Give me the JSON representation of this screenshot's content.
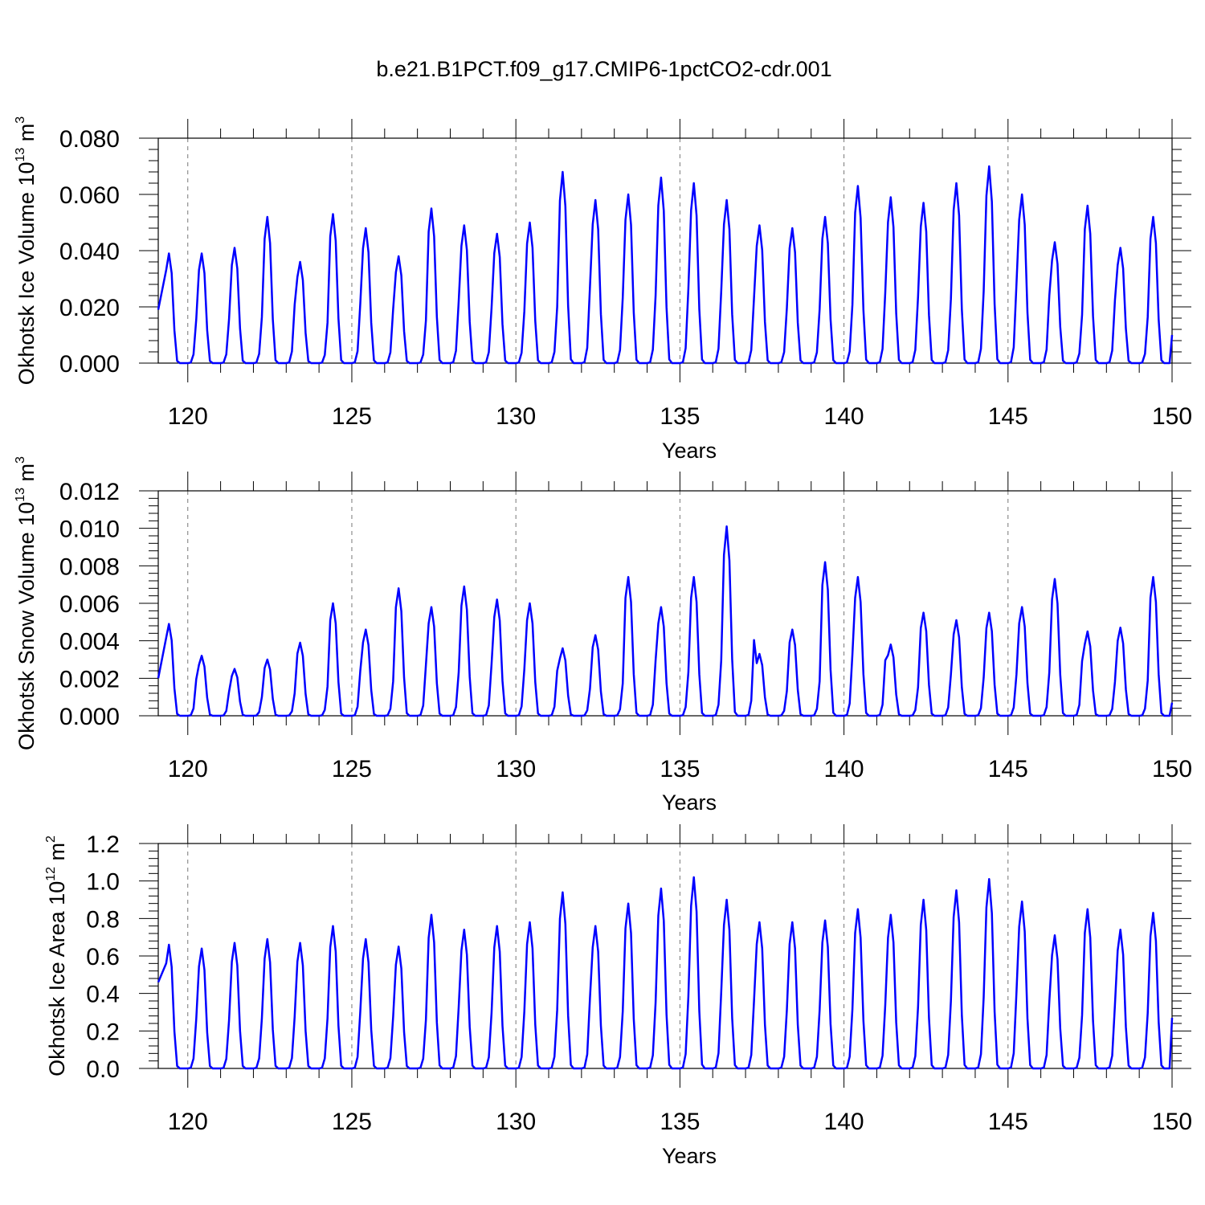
{
  "title": "b.e21.B1PCT.f09_g17.CMIP6-1pctCO2-cdr.001",
  "chart_data": [
    {
      "type": "line",
      "ylabel_main": "Okhotsk Ice Volume 10",
      "ylabel_exp": "13",
      "ylabel_unit": "m",
      "ylabel_unit_exp": "3",
      "xlabel": "Years",
      "xlim": [
        119.1,
        150.0
      ],
      "ylim": [
        0.0,
        0.08
      ],
      "xticks": [
        120,
        125,
        130,
        135,
        140,
        145,
        150
      ],
      "xtick_labels": [
        "120",
        "125",
        "130",
        "135",
        "140",
        "145",
        "150"
      ],
      "yticks": [
        0.0,
        0.02,
        0.04,
        0.06,
        0.08
      ],
      "ytick_labels": [
        "0.000",
        "0.020",
        "0.040",
        "0.060",
        "0.080"
      ],
      "grid": "x dashed",
      "color": "#0000ff",
      "start": 0.019,
      "end": 0.01,
      "peaks": [
        0.039,
        0.039,
        0.041,
        0.052,
        0.036,
        0.053,
        0.048,
        0.038,
        0.055,
        0.049,
        0.046,
        0.05,
        0.068,
        0.058,
        0.06,
        0.066,
        0.064,
        0.058,
        0.049,
        0.048,
        0.052,
        0.063,
        0.059,
        0.057,
        0.064,
        0.07,
        0.06,
        0.043,
        0.056,
        0.041,
        0.052
      ]
    },
    {
      "type": "line",
      "ylabel_main": "Okhotsk Snow Volume 10",
      "ylabel_exp": "13",
      "ylabel_unit": "m",
      "ylabel_unit_exp": "3",
      "xlabel": "Years",
      "xlim": [
        119.1,
        150.0
      ],
      "ylim": [
        0.0,
        0.012
      ],
      "xticks": [
        120,
        125,
        130,
        135,
        140,
        145,
        150
      ],
      "xtick_labels": [
        "120",
        "125",
        "130",
        "135",
        "140",
        "145",
        "150"
      ],
      "yticks": [
        0.0,
        0.002,
        0.004,
        0.006,
        0.008,
        0.01,
        0.012
      ],
      "ytick_labels": [
        "0.000",
        "0.002",
        "0.004",
        "0.006",
        "0.008",
        "0.010",
        "0.012"
      ],
      "grid": "x dashed",
      "color": "#0000ff",
      "start": 0.002,
      "end": 0.0007,
      "peaks": [
        0.0049,
        0.0032,
        0.0025,
        0.003,
        0.0039,
        0.006,
        0.0046,
        0.0068,
        0.0058,
        0.0069,
        0.0062,
        0.006,
        0.0036,
        0.0043,
        0.0074,
        0.0058,
        0.0074,
        0.0101,
        0.0033,
        0.0046,
        0.0082,
        0.0074,
        0.0038,
        0.0055,
        0.0051,
        0.0055,
        0.0058,
        0.0073,
        0.0045,
        0.0047,
        0.0074
      ]
    },
    {
      "type": "line",
      "ylabel_main": "Okhotsk Ice Area 10",
      "ylabel_exp": "12",
      "ylabel_unit": "m",
      "ylabel_unit_exp": "2",
      "xlabel": "Years",
      "xlim": [
        119.1,
        150.0
      ],
      "ylim": [
        0.0,
        1.2
      ],
      "xticks": [
        120,
        125,
        130,
        135,
        140,
        145,
        150
      ],
      "xtick_labels": [
        "120",
        "125",
        "130",
        "135",
        "140",
        "145",
        "150"
      ],
      "yticks": [
        0.0,
        0.2,
        0.4,
        0.6,
        0.8,
        1.0,
        1.2
      ],
      "ytick_labels": [
        "0.0",
        "0.2",
        "0.4",
        "0.6",
        "0.8",
        "1.0",
        "1.2"
      ],
      "grid": "x dashed",
      "color": "#0000ff",
      "start": 0.46,
      "end": 0.27,
      "peaks": [
        0.66,
        0.64,
        0.67,
        0.69,
        0.67,
        0.76,
        0.69,
        0.65,
        0.82,
        0.74,
        0.76,
        0.78,
        0.94,
        0.76,
        0.88,
        0.96,
        1.02,
        0.9,
        0.78,
        0.78,
        0.79,
        0.85,
        0.82,
        0.9,
        0.95,
        1.01,
        0.89,
        0.71,
        0.85,
        0.74,
        0.83
      ]
    }
  ]
}
